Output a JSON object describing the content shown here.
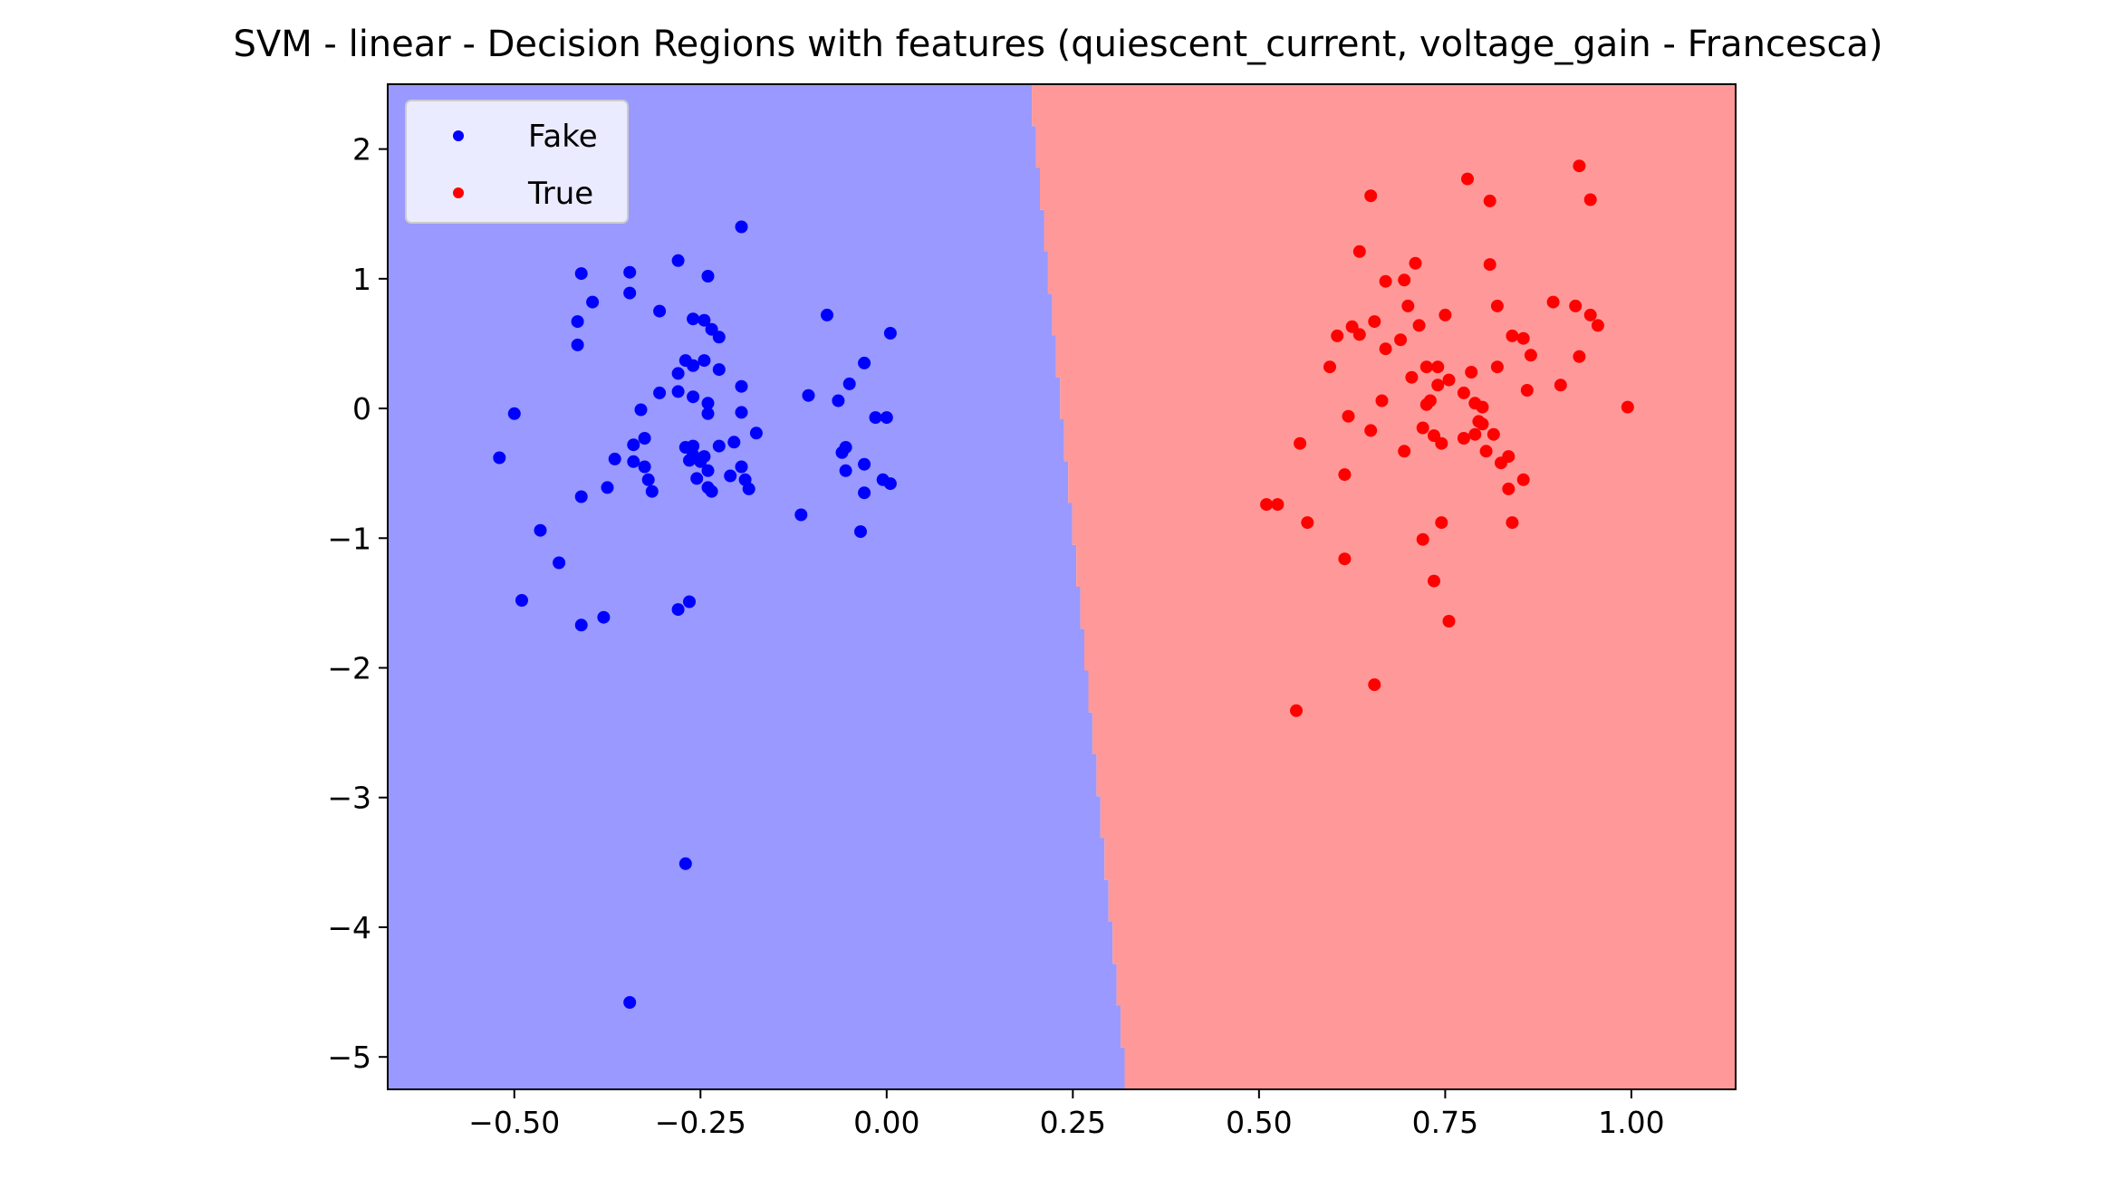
{
  "chart_data": {
    "type": "scatter",
    "title": "SVM - linear - Decision Regions with features (quiescent_current, voltage_gain - Francesca)",
    "xlabel": "",
    "ylabel": "",
    "xlim": [
      -0.67,
      1.14
    ],
    "ylim": [
      -5.25,
      2.5
    ],
    "xticks": [
      -0.5,
      -0.25,
      0.0,
      0.25,
      0.5,
      0.75,
      1.0
    ],
    "xtick_labels": [
      "−0.50",
      "−0.25",
      "0.00",
      "0.25",
      "0.50",
      "0.75",
      "1.00"
    ],
    "yticks": [
      2,
      1,
      0,
      -1,
      -2,
      -3,
      -4,
      -5
    ],
    "ytick_labels": [
      "2",
      "1",
      "0",
      "−1",
      "−2",
      "−3",
      "−4",
      "−5"
    ],
    "grid": false,
    "legend_position": "top-left",
    "decision_boundary": {
      "x_at_top": 0.195,
      "x_at_bottom": 0.325,
      "left_region_color": "#9999ff",
      "right_region_color": "#ff9999"
    },
    "series": [
      {
        "name": "Fake",
        "color": "#0000ff",
        "points": [
          [
            -0.52,
            -0.38
          ],
          [
            -0.5,
            -0.04
          ],
          [
            -0.49,
            -1.48
          ],
          [
            -0.465,
            -0.94
          ],
          [
            -0.44,
            -1.19
          ],
          [
            -0.41,
            -1.67
          ],
          [
            -0.41,
            -0.68
          ],
          [
            -0.415,
            0.49
          ],
          [
            -0.415,
            0.67
          ],
          [
            -0.41,
            1.04
          ],
          [
            -0.395,
            0.82
          ],
          [
            -0.38,
            -1.61
          ],
          [
            -0.375,
            -0.61
          ],
          [
            -0.365,
            -0.39
          ],
          [
            -0.345,
            -4.58
          ],
          [
            -0.345,
            1.05
          ],
          [
            -0.345,
            0.89
          ],
          [
            -0.34,
            -0.28
          ],
          [
            -0.34,
            -0.41
          ],
          [
            -0.33,
            -0.01
          ],
          [
            -0.325,
            -0.23
          ],
          [
            -0.325,
            -0.45
          ],
          [
            -0.32,
            -0.55
          ],
          [
            -0.315,
            -0.64
          ],
          [
            -0.305,
            0.12
          ],
          [
            -0.305,
            0.75
          ],
          [
            -0.28,
            1.14
          ],
          [
            -0.28,
            0.27
          ],
          [
            -0.28,
            0.13
          ],
          [
            -0.28,
            -1.55
          ],
          [
            -0.27,
            -3.51
          ],
          [
            -0.27,
            0.37
          ],
          [
            -0.27,
            -0.3
          ],
          [
            -0.265,
            -1.49
          ],
          [
            -0.265,
            -0.4
          ],
          [
            -0.26,
            0.69
          ],
          [
            -0.26,
            0.33
          ],
          [
            -0.26,
            0.09
          ],
          [
            -0.26,
            -0.29
          ],
          [
            -0.26,
            -0.36
          ],
          [
            -0.255,
            -0.54
          ],
          [
            -0.25,
            -0.41
          ],
          [
            -0.245,
            0.68
          ],
          [
            -0.245,
            0.37
          ],
          [
            -0.245,
            -0.37
          ],
          [
            -0.24,
            1.02
          ],
          [
            -0.24,
            0.04
          ],
          [
            -0.24,
            -0.04
          ],
          [
            -0.24,
            -0.48
          ],
          [
            -0.24,
            -0.61
          ],
          [
            -0.235,
            0.61
          ],
          [
            -0.235,
            -0.64
          ],
          [
            -0.225,
            0.55
          ],
          [
            -0.225,
            0.3
          ],
          [
            -0.225,
            -0.29
          ],
          [
            -0.21,
            -0.52
          ],
          [
            -0.205,
            -0.26
          ],
          [
            -0.195,
            1.4
          ],
          [
            -0.195,
            0.17
          ],
          [
            -0.195,
            -0.03
          ],
          [
            -0.195,
            -0.45
          ],
          [
            -0.19,
            -0.55
          ],
          [
            -0.185,
            -0.62
          ],
          [
            -0.175,
            -0.19
          ],
          [
            -0.115,
            -0.82
          ],
          [
            -0.105,
            0.1
          ],
          [
            -0.08,
            0.72
          ],
          [
            -0.065,
            0.06
          ],
          [
            -0.06,
            -0.34
          ],
          [
            -0.055,
            -0.3
          ],
          [
            -0.055,
            -0.48
          ],
          [
            -0.05,
            0.19
          ],
          [
            -0.035,
            -0.95
          ],
          [
            -0.03,
            0.35
          ],
          [
            -0.03,
            -0.43
          ],
          [
            -0.03,
            -0.65
          ],
          [
            -0.015,
            -0.07
          ],
          [
            -0.005,
            -0.55
          ],
          [
            0.0,
            -0.07
          ],
          [
            0.005,
            -0.58
          ],
          [
            0.005,
            0.58
          ]
        ]
      },
      {
        "name": "True",
        "color": "#ff0000",
        "points": [
          [
            0.51,
            -0.74
          ],
          [
            0.525,
            -0.74
          ],
          [
            0.55,
            -2.33
          ],
          [
            0.555,
            -0.27
          ],
          [
            0.565,
            -0.88
          ],
          [
            0.595,
            0.32
          ],
          [
            0.605,
            0.56
          ],
          [
            0.615,
            -1.16
          ],
          [
            0.615,
            -0.51
          ],
          [
            0.62,
            -0.06
          ],
          [
            0.625,
            0.63
          ],
          [
            0.635,
            1.21
          ],
          [
            0.635,
            0.57
          ],
          [
            0.65,
            -0.17
          ],
          [
            0.65,
            1.64
          ],
          [
            0.655,
            -2.13
          ],
          [
            0.655,
            0.67
          ],
          [
            0.665,
            0.06
          ],
          [
            0.67,
            0.46
          ],
          [
            0.67,
            0.98
          ],
          [
            0.69,
            0.53
          ],
          [
            0.695,
            0.99
          ],
          [
            0.695,
            -0.33
          ],
          [
            0.7,
            0.79
          ],
          [
            0.705,
            0.24
          ],
          [
            0.71,
            1.12
          ],
          [
            0.715,
            0.64
          ],
          [
            0.72,
            -1.01
          ],
          [
            0.72,
            -0.15
          ],
          [
            0.725,
            0.32
          ],
          [
            0.725,
            0.03
          ],
          [
            0.73,
            0.06
          ],
          [
            0.735,
            -1.33
          ],
          [
            0.735,
            -0.21
          ],
          [
            0.74,
            0.32
          ],
          [
            0.74,
            0.18
          ],
          [
            0.745,
            -0.88
          ],
          [
            0.745,
            -0.27
          ],
          [
            0.75,
            0.72
          ],
          [
            0.755,
            -1.64
          ],
          [
            0.755,
            0.22
          ],
          [
            0.775,
            -0.23
          ],
          [
            0.775,
            0.12
          ],
          [
            0.78,
            1.77
          ],
          [
            0.785,
            0.28
          ],
          [
            0.79,
            -0.2
          ],
          [
            0.79,
            0.04
          ],
          [
            0.795,
            -0.1
          ],
          [
            0.8,
            -0.12
          ],
          [
            0.8,
            0.01
          ],
          [
            0.805,
            -0.33
          ],
          [
            0.81,
            1.11
          ],
          [
            0.81,
            1.6
          ],
          [
            0.815,
            -0.2
          ],
          [
            0.82,
            0.79
          ],
          [
            0.82,
            0.32
          ],
          [
            0.825,
            -0.42
          ],
          [
            0.835,
            -0.62
          ],
          [
            0.835,
            -0.37
          ],
          [
            0.84,
            -0.88
          ],
          [
            0.84,
            0.56
          ],
          [
            0.855,
            0.54
          ],
          [
            0.855,
            -0.55
          ],
          [
            0.86,
            0.14
          ],
          [
            0.865,
            0.41
          ],
          [
            0.895,
            0.82
          ],
          [
            0.905,
            0.18
          ],
          [
            0.925,
            0.79
          ],
          [
            0.93,
            0.4
          ],
          [
            0.93,
            1.87
          ],
          [
            0.945,
            1.61
          ],
          [
            0.945,
            0.72
          ],
          [
            0.955,
            0.64
          ],
          [
            0.995,
            0.01
          ]
        ]
      }
    ]
  }
}
